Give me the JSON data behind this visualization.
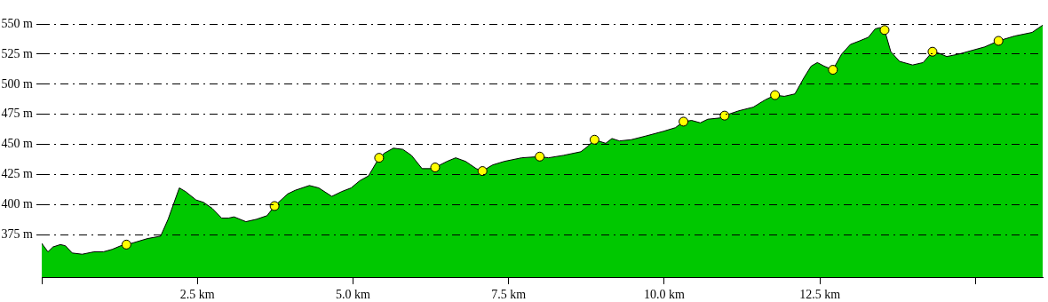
{
  "chart_data": {
    "type": "area",
    "xlim": [
      0,
      16.08
    ],
    "ylim": [
      340,
      550
    ],
    "xticks": [
      {
        "value": 0,
        "label": null
      },
      {
        "value": 2.5,
        "label": "2.5 km"
      },
      {
        "value": 5,
        "label": "5.0 km"
      },
      {
        "value": 7.5,
        "label": "7.5 km"
      },
      {
        "value": 10,
        "label": "10.0 km"
      },
      {
        "value": 12.5,
        "label": "12.5 km"
      },
      {
        "value": 15,
        "label": null
      }
    ],
    "yticks": [
      {
        "value": 375,
        "label": "375 m"
      },
      {
        "value": 400,
        "label": "400 m"
      },
      {
        "value": 425,
        "label": "425 m"
      },
      {
        "value": 450,
        "label": "450 m"
      },
      {
        "value": 475,
        "label": "475 m"
      },
      {
        "value": 500,
        "label": "500 m"
      },
      {
        "value": 525,
        "label": "525 m"
      },
      {
        "value": 550,
        "label": "550 m"
      }
    ],
    "grid": "y",
    "legend": false,
    "series": [
      {
        "color": "#00c800",
        "x": [
          0,
          0.1,
          0.18,
          0.3,
          0.38,
          0.49,
          0.65,
          0.84,
          0.99,
          1.13,
          1.27,
          1.36,
          1.44,
          1.7,
          1.91,
          2.03,
          2.21,
          2.31,
          2.48,
          2.6,
          2.74,
          2.89,
          3.0,
          3.09,
          3.28,
          3.45,
          3.62,
          3.74,
          3.95,
          4.07,
          4.3,
          4.45,
          4.66,
          4.82,
          4.97,
          5.11,
          5.25,
          5.42,
          5.51,
          5.65,
          5.8,
          5.94,
          6.11,
          6.25,
          6.32,
          6.51,
          6.65,
          6.81,
          6.98,
          7.08,
          7.24,
          7.43,
          7.71,
          8.0,
          8.14,
          8.38,
          8.66,
          8.76,
          8.88,
          9.06,
          9.16,
          9.28,
          9.47,
          9.7,
          9.99,
          10.18,
          10.31,
          10.44,
          10.58,
          10.7,
          10.89,
          10.97,
          11.2,
          11.43,
          11.62,
          11.78,
          11.93,
          12.1,
          12.24,
          12.36,
          12.46,
          12.57,
          12.71,
          12.85,
          12.99,
          13.14,
          13.28,
          13.39,
          13.47,
          13.54,
          13.64,
          13.78,
          13.99,
          14.16,
          14.31,
          14.4,
          14.54,
          14.73,
          15.15,
          15.37,
          15.63,
          15.91,
          16.08
        ],
        "values": [
          368,
          361,
          365,
          367,
          366,
          360,
          359,
          361,
          361,
          363,
          366,
          367,
          368,
          372,
          374,
          388,
          414,
          411,
          404,
          402,
          397,
          389,
          389,
          390,
          386,
          388,
          391,
          399,
          409,
          412,
          416,
          414,
          407,
          411,
          414,
          420,
          424,
          439,
          443,
          447,
          446,
          441,
          430,
          430,
          431,
          436,
          439,
          436,
          430,
          428,
          433,
          436,
          439,
          440,
          439,
          441,
          444,
          448,
          454,
          451,
          455,
          453,
          454,
          457,
          461,
          464,
          469,
          470,
          468,
          471,
          472,
          474,
          478,
          481,
          487,
          491,
          490,
          492,
          505,
          515,
          518,
          515,
          512,
          525,
          533,
          536,
          539,
          546,
          547,
          545,
          527,
          519,
          516,
          518,
          527,
          526,
          523,
          525,
          531,
          536,
          540,
          543,
          549
        ]
      },
      {
        "type": "scatter",
        "color": "#ffff00",
        "marker": "circle",
        "x": [
          1.36,
          3.74,
          5.42,
          6.32,
          7.08,
          8.0,
          8.88,
          10.31,
          10.97,
          11.78,
          12.71,
          13.54,
          14.31,
          15.37
        ],
        "values": [
          367,
          399,
          439,
          431,
          428,
          440,
          454,
          469,
          474,
          491,
          512,
          545,
          527,
          536
        ]
      }
    ]
  }
}
